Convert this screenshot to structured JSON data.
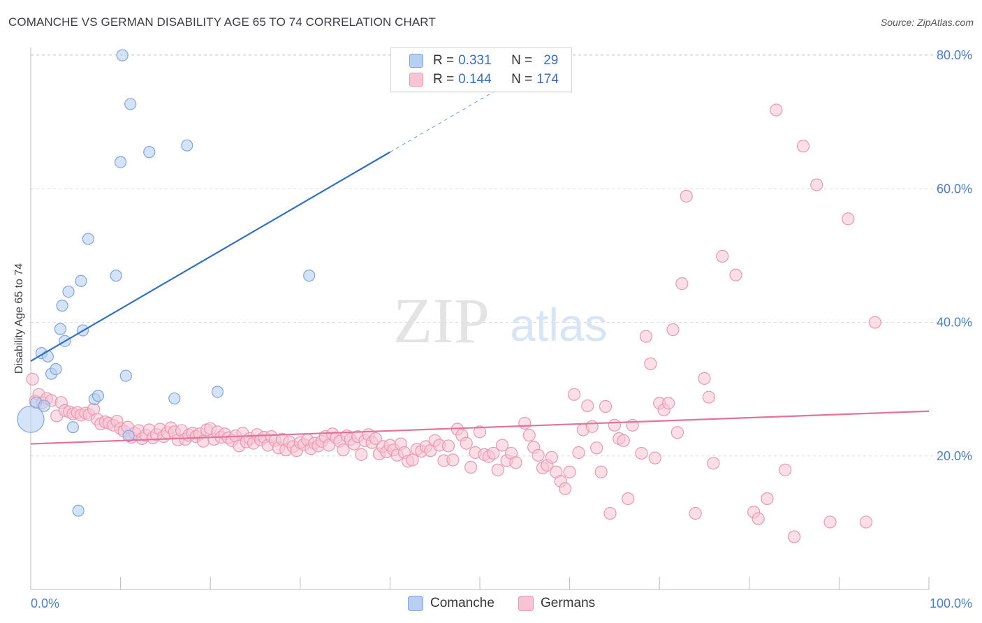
{
  "header": {
    "title": "COMANCHE VS GERMAN DISABILITY AGE 65 TO 74 CORRELATION CHART",
    "source": "Source: ZipAtlas.com"
  },
  "watermark": {
    "zip": "ZIP",
    "atlas": "atlas"
  },
  "legend": {
    "rows": [
      {
        "r_label": "R =",
        "r_value": "0.331",
        "n_label": "N =",
        "n_value": "29"
      },
      {
        "r_label": "R =",
        "r_value": "0.144",
        "n_label": "N =",
        "n_value": "174"
      }
    ]
  },
  "bottom_legend": {
    "comanche": "Comanche",
    "germans": "Germans"
  },
  "colors": {
    "comanche_fill": "#b7d0f1",
    "comanche_stroke": "#7fa6dd",
    "comanche_line": "#2f6fc9",
    "germans_fill": "#f7c4d3",
    "germans_stroke": "#ec97b2",
    "germans_line": "#e4739b",
    "axis_label": "#4a7fc9",
    "grid": "#dcdcdc"
  },
  "chart_data": {
    "type": "scatter",
    "title": "COMANCHE VS GERMAN DISABILITY AGE 65 TO 74 CORRELATION CHART",
    "xlabel": "",
    "ylabel": "Disability Age 65 to 74",
    "xlim": [
      0,
      100
    ],
    "ylim": [
      0,
      82
    ],
    "x_tick_labels": [
      "0.0%",
      "100.0%"
    ],
    "y_ticks": [
      20,
      40,
      60,
      80
    ],
    "y_tick_labels": [
      "20.0%",
      "40.0%",
      "60.0%",
      "80.0%"
    ],
    "grid": true,
    "legend_position": "top-center",
    "series": [
      {
        "name": "Comanche",
        "r": 0.331,
        "n": 29,
        "trend": {
          "x0": 0,
          "y0": 34.2,
          "x1": 40,
          "y1": 65.5,
          "dashed_to_x": 55
        },
        "points": [
          [
            0,
            25.5
          ],
          [
            0.6,
            28
          ],
          [
            1.5,
            27.5
          ],
          [
            1.2,
            35.4
          ],
          [
            1.9,
            34.9
          ],
          [
            2.3,
            32.3
          ],
          [
            2.8,
            33
          ],
          [
            3.3,
            39
          ],
          [
            3.5,
            42.5
          ],
          [
            3.8,
            37.2
          ],
          [
            4.2,
            44.6
          ],
          [
            4.7,
            24.3
          ],
          [
            5.3,
            11.8
          ],
          [
            5.6,
            46.2
          ],
          [
            5.8,
            38.8
          ],
          [
            6.4,
            52.5
          ],
          [
            7.1,
            28.5
          ],
          [
            7.5,
            29
          ],
          [
            9.5,
            47
          ],
          [
            10,
            64
          ],
          [
            10.2,
            80
          ],
          [
            10.6,
            32
          ],
          [
            10.9,
            23
          ],
          [
            11.1,
            72.7
          ],
          [
            13.2,
            65.5
          ],
          [
            16,
            28.6
          ],
          [
            17.4,
            66.5
          ],
          [
            20.8,
            29.6
          ],
          [
            31,
            47
          ]
        ]
      },
      {
        "name": "Germans",
        "r": 0.144,
        "n": 174,
        "trend": {
          "x0": 0,
          "y0": 21.8,
          "x1": 100,
          "y1": 26.7
        },
        "points": [
          [
            0.2,
            31.5
          ],
          [
            0.5,
            28.2
          ],
          [
            0.9,
            29.2
          ],
          [
            1.3,
            28
          ],
          [
            1.8,
            28.6
          ],
          [
            2.3,
            28.3
          ],
          [
            2.9,
            26
          ],
          [
            3.4,
            28
          ],
          [
            3.8,
            26.8
          ],
          [
            4.3,
            26.6
          ],
          [
            4.7,
            26.3
          ],
          [
            5.2,
            26.5
          ],
          [
            5.6,
            26.1
          ],
          [
            6.1,
            26.4
          ],
          [
            6.5,
            26.2
          ],
          [
            7,
            27
          ],
          [
            7.4,
            25.5
          ],
          [
            7.8,
            24.8
          ],
          [
            8.3,
            25.1
          ],
          [
            8.7,
            24.9
          ],
          [
            9.2,
            24.6
          ],
          [
            9.6,
            25.2
          ],
          [
            10,
            24.1
          ],
          [
            10.4,
            23.7
          ],
          [
            10.8,
            24.3
          ],
          [
            11.2,
            22.8
          ],
          [
            11.6,
            23.4
          ],
          [
            12,
            23.8
          ],
          [
            12.4,
            22.6
          ],
          [
            12.8,
            23.1
          ],
          [
            13.2,
            23.9
          ],
          [
            13.6,
            22.7
          ],
          [
            14,
            23.2
          ],
          [
            14.4,
            24
          ],
          [
            14.8,
            22.9
          ],
          [
            15.2,
            23.5
          ],
          [
            15.6,
            24.2
          ],
          [
            16,
            23.6
          ],
          [
            16.4,
            22.4
          ],
          [
            16.8,
            23.8
          ],
          [
            17.2,
            22.5
          ],
          [
            17.6,
            23.1
          ],
          [
            18,
            23.4
          ],
          [
            18.4,
            22.9
          ],
          [
            18.8,
            23.3
          ],
          [
            19.2,
            22.2
          ],
          [
            19.6,
            23.9
          ],
          [
            20,
            24.1
          ],
          [
            20.4,
            22.5
          ],
          [
            20.8,
            23.6
          ],
          [
            21.2,
            22.8
          ],
          [
            21.6,
            23.3
          ],
          [
            22,
            22.7
          ],
          [
            22.4,
            22.3
          ],
          [
            22.8,
            23
          ],
          [
            23.2,
            21.5
          ],
          [
            23.6,
            23.4
          ],
          [
            24,
            22.1
          ],
          [
            24.4,
            22.6
          ],
          [
            24.8,
            21.9
          ],
          [
            25.2,
            23.2
          ],
          [
            25.6,
            22.4
          ],
          [
            26,
            22.8
          ],
          [
            26.4,
            21.6
          ],
          [
            26.8,
            22.9
          ],
          [
            27.2,
            22.3
          ],
          [
            27.6,
            21.2
          ],
          [
            28,
            22.5
          ],
          [
            28.4,
            20.9
          ],
          [
            28.8,
            22.1
          ],
          [
            29.2,
            21.4
          ],
          [
            29.6,
            20.8
          ],
          [
            30,
            22
          ],
          [
            30.4,
            21.7
          ],
          [
            30.8,
            22.4
          ],
          [
            31.2,
            21.1
          ],
          [
            31.6,
            21.9
          ],
          [
            32,
            21.5
          ],
          [
            32.4,
            22.2
          ],
          [
            32.8,
            22.9
          ],
          [
            33.2,
            21.6
          ],
          [
            33.6,
            23.3
          ],
          [
            34,
            22.7
          ],
          [
            34.4,
            22.2
          ],
          [
            34.8,
            20.9
          ],
          [
            35.2,
            23
          ],
          [
            35.6,
            22.5
          ],
          [
            36,
            21.8
          ],
          [
            36.4,
            22.9
          ],
          [
            36.8,
            20.2
          ],
          [
            37.2,
            22.3
          ],
          [
            37.6,
            23.2
          ],
          [
            38,
            22
          ],
          [
            38.4,
            22.6
          ],
          [
            38.8,
            20.3
          ],
          [
            39.2,
            21.4
          ],
          [
            39.6,
            20.6
          ],
          [
            40,
            21.6
          ],
          [
            40.4,
            20.9
          ],
          [
            40.8,
            20.1
          ],
          [
            41.2,
            21.8
          ],
          [
            41.6,
            20.5
          ],
          [
            42,
            19.2
          ],
          [
            42.5,
            19.4
          ],
          [
            43,
            21
          ],
          [
            43.5,
            20.7
          ],
          [
            44,
            21.4
          ],
          [
            44.5,
            20.8
          ],
          [
            45,
            22.3
          ],
          [
            45.5,
            21.6
          ],
          [
            46,
            19.3
          ],
          [
            46.5,
            21.5
          ],
          [
            47,
            19.4
          ],
          [
            47.5,
            24
          ],
          [
            48,
            23.1
          ],
          [
            48.5,
            21.9
          ],
          [
            49,
            18.3
          ],
          [
            49.5,
            20.5
          ],
          [
            50,
            23.6
          ],
          [
            50.5,
            20.2
          ],
          [
            51,
            19.9
          ],
          [
            51.5,
            20.4
          ],
          [
            52,
            17.9
          ],
          [
            52.5,
            21.6
          ],
          [
            53,
            19.3
          ],
          [
            53.5,
            20.4
          ],
          [
            54,
            19
          ],
          [
            55,
            24.9
          ],
          [
            55.5,
            23.1
          ],
          [
            56,
            21.3
          ],
          [
            56.5,
            20.1
          ],
          [
            57,
            18.2
          ],
          [
            57.5,
            18.6
          ],
          [
            58,
            19.8
          ],
          [
            58.5,
            17.6
          ],
          [
            59,
            16.2
          ],
          [
            59.5,
            15.1
          ],
          [
            60,
            17.6
          ],
          [
            60.5,
            29.2
          ],
          [
            61,
            20.5
          ],
          [
            61.5,
            23.9
          ],
          [
            62,
            27.5
          ],
          [
            62.5,
            24.4
          ],
          [
            63,
            21.2
          ],
          [
            63.5,
            17.6
          ],
          [
            64,
            27.4
          ],
          [
            64.5,
            11.4
          ],
          [
            65,
            24.6
          ],
          [
            65.5,
            22.6
          ],
          [
            66,
            22.3
          ],
          [
            66.5,
            13.6
          ],
          [
            67,
            24.6
          ],
          [
            68,
            20.4
          ],
          [
            68.5,
            37.9
          ],
          [
            69,
            33.8
          ],
          [
            69.5,
            19.7
          ],
          [
            70,
            27.9
          ],
          [
            70.5,
            26.9
          ],
          [
            71,
            27.9
          ],
          [
            71.5,
            38.9
          ],
          [
            72,
            23.5
          ],
          [
            72.5,
            45.8
          ],
          [
            73,
            58.9
          ],
          [
            74,
            11.4
          ],
          [
            75,
            31.6
          ],
          [
            75.5,
            28.8
          ],
          [
            76,
            18.9
          ],
          [
            77,
            49.9
          ],
          [
            78.5,
            47.1
          ],
          [
            80.5,
            11.6
          ],
          [
            81,
            10.6
          ],
          [
            82,
            13.6
          ],
          [
            83,
            71.8
          ],
          [
            84,
            17.9
          ],
          [
            85,
            7.9
          ],
          [
            86,
            66.4
          ],
          [
            87.5,
            60.6
          ],
          [
            89,
            10.1
          ],
          [
            91,
            55.5
          ],
          [
            93,
            10.1
          ],
          [
            94,
            40
          ]
        ]
      }
    ]
  }
}
